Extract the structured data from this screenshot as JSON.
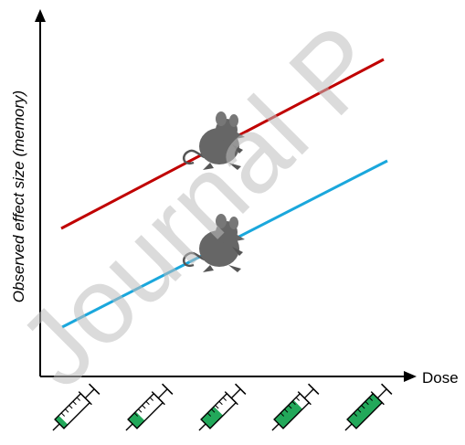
{
  "axes": {
    "y_label": "Observed effect size (memory)",
    "x_label": "Dose"
  },
  "watermark": "Journal P"
}
